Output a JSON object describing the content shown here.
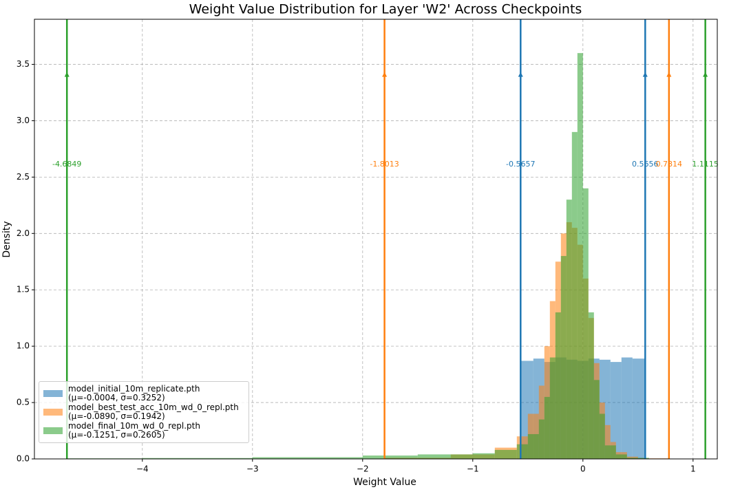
{
  "chart_data": {
    "type": "histogram",
    "title": "Weight Value Distribution for Layer 'W2' Across Checkpoints",
    "xlabel": "Weight Value",
    "ylabel": "Density",
    "xlim": [
      -4.98,
      1.22
    ],
    "ylim": [
      0,
      3.9
    ],
    "xticks": [
      {
        "value": -4,
        "label": "−4"
      },
      {
        "value": -3,
        "label": "−3"
      },
      {
        "value": -2,
        "label": "−2"
      },
      {
        "value": -1,
        "label": "−1"
      },
      0,
      1
    ],
    "yticks": [
      {
        "value": 0,
        "label": "0.0"
      },
      0.5,
      {
        "value": 1,
        "label": "1.0"
      },
      1.5,
      {
        "value": 2,
        "label": "2.0"
      },
      2.5,
      {
        "value": 3,
        "label": "3.0"
      },
      3.5
    ],
    "grid": true,
    "legend": "lower left",
    "series": [
      {
        "name": "model_initial_10m_replicate.pth\n(μ=-0.0004, σ=0.3252)",
        "color": "#1f77b4",
        "bins": [
          -0.5657,
          -0.45,
          -0.35,
          -0.25,
          -0.15,
          -0.05,
          0.05,
          0.15,
          0.25,
          0.35,
          0.45,
          0.5656
        ],
        "values": [
          0.87,
          0.89,
          0.86,
          0.9,
          0.88,
          0.87,
          0.89,
          0.88,
          0.86,
          0.9,
          0.89
        ]
      },
      {
        "name": "model_best_test_acc_10m_wd_0_repl.pth\n(μ=-0.0890, σ=0.1942)",
        "color": "#ff7f0e",
        "bins": [
          -1.8013,
          -1.2,
          -0.8,
          -0.6,
          -0.5,
          -0.4,
          -0.35,
          -0.3,
          -0.25,
          -0.2,
          -0.15,
          -0.1,
          -0.05,
          0,
          0.05,
          0.1,
          0.15,
          0.2,
          0.25,
          0.3,
          0.4,
          0.5,
          0.7814
        ],
        "values": [
          0.01,
          0.04,
          0.1,
          0.2,
          0.4,
          0.65,
          1.0,
          1.4,
          1.75,
          2.0,
          2.1,
          2.05,
          1.9,
          1.6,
          1.25,
          0.85,
          0.5,
          0.3,
          0.15,
          0.06,
          0.02,
          0.005
        ]
      },
      {
        "name": "model_final_10m_wd_0_repl.pth\n(μ=-0.1251, σ=0.2605)",
        "color": "#2ca02c",
        "bins": [
          -4.6849,
          -4,
          -3,
          -2,
          -1.5,
          -1,
          -0.8,
          -0.6,
          -0.5,
          -0.4,
          -0.35,
          -0.3,
          -0.25,
          -0.2,
          -0.15,
          -0.1,
          -0.05,
          0,
          0.05,
          0.1,
          0.15,
          0.2,
          0.3,
          0.4,
          0.6,
          1.1115
        ],
        "values": [
          0.005,
          0.008,
          0.015,
          0.03,
          0.04,
          0.05,
          0.08,
          0.13,
          0.22,
          0.35,
          0.55,
          0.9,
          1.3,
          1.8,
          2.3,
          2.9,
          3.6,
          2.4,
          1.3,
          0.7,
          0.4,
          0.12,
          0.04,
          0.01,
          0.003
        ]
      }
    ],
    "vlines": [
      {
        "value": -0.5657,
        "color": "#1f77b4"
      },
      {
        "value": 0.5656,
        "color": "#1f77b4"
      },
      {
        "value": -1.8013,
        "color": "#ff7f0e"
      },
      {
        "value": 0.7814,
        "color": "#ff7f0e"
      },
      {
        "value": -4.6849,
        "color": "#2ca02c"
      },
      {
        "value": 1.1115,
        "color": "#2ca02c"
      }
    ]
  }
}
